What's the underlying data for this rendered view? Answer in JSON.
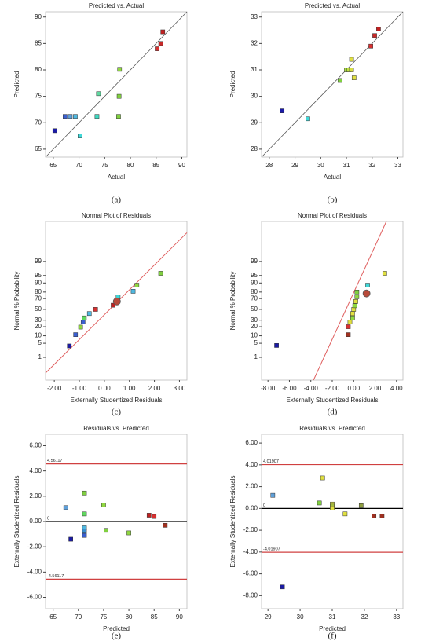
{
  "chart_data": [
    {
      "type": "scatter",
      "title": "Predicted vs. Actual",
      "xlabel": "Actual",
      "ylabel": "Predicted",
      "caption": "(a)",
      "x": [
        65.3,
        67.3,
        68.3,
        69.3,
        70.2,
        73.5,
        73.8,
        77.7,
        77.8,
        77.9,
        85.2,
        85.9,
        86.3
      ],
      "values": [
        68.5,
        71.2,
        71.2,
        71.2,
        67.5,
        71.2,
        75.5,
        71.2,
        75,
        80.1,
        84,
        85,
        87.2
      ],
      "colors": [
        "#1a1aa6",
        "#3a5fd0",
        "#5f9fd8",
        "#4fb8e0",
        "#3fd8d8",
        "#3fd8c0",
        "#60d8a0",
        "#80d040",
        "#80d040",
        "#90d840",
        "#d83030",
        "#c82828",
        "#c02020"
      ],
      "xlim": [
        63.5,
        91
      ],
      "ylim": [
        63.5,
        91
      ],
      "xticks": [
        65,
        70,
        75,
        80,
        85,
        90
      ],
      "yticks": [
        65,
        70,
        75,
        80,
        85,
        90
      ],
      "diagonal": true
    },
    {
      "type": "scatter",
      "title": "Predicted vs. Actual",
      "xlabel": "Actual",
      "ylabel": "Predicted",
      "caption": "(b)",
      "x": [
        28.5,
        29.5,
        30.75,
        31.0,
        31.1,
        31.2,
        31.2,
        31.3,
        31.95,
        32.1,
        32.25
      ],
      "values": [
        29.45,
        29.15,
        30.6,
        31.0,
        31.0,
        31.0,
        31.4,
        30.7,
        31.9,
        32.3,
        32.55
      ],
      "colors": [
        "#1a1aa6",
        "#3fd8d8",
        "#80d040",
        "#a8e040",
        "#c0e040",
        "#d8e040",
        "#e0e040",
        "#e0e040",
        "#d83030",
        "#c82828",
        "#c02020"
      ],
      "xlim": [
        27.7,
        33.2
      ],
      "ylim": [
        27.7,
        33.2
      ],
      "xticks": [
        28,
        29,
        30,
        31,
        32,
        33
      ],
      "yticks": [
        28,
        29,
        30,
        31,
        32,
        33
      ],
      "diagonal": true
    },
    {
      "type": "scatter",
      "title": "Normal Plot of Residuals",
      "xlabel": "Externally Studentized Residuals",
      "ylabel": "Normal % Probability",
      "caption": "(c)",
      "x": [
        -1.4,
        -1.15,
        -0.95,
        -0.85,
        -0.8,
        -0.6,
        -0.35,
        0.35,
        0.55,
        1.15,
        1.3,
        2.25
      ],
      "values": [
        3.8,
        11,
        19.5,
        27,
        34,
        42,
        50,
        58,
        73,
        81,
        88,
        96
      ],
      "colors": [
        "#1a1aa6",
        "#3a5fd0",
        "#90d840",
        "#3a5fd0",
        "#60d860",
        "#4fb8e0",
        "#d83030",
        "#c02020",
        "#3fd8d8",
        "#4fb8e0",
        "#90d840",
        "#80d040"
      ],
      "highlight": {
        "x": 0.5,
        "y": 65
      },
      "fit_line": {
        "x": [
          -2.35,
          3.3
        ],
        "y": [
          0.1,
          99.99
        ]
      },
      "yscale": "probit",
      "xlim": [
        -2.35,
        3.3
      ],
      "ylim": [
        0.03,
        99.999
      ],
      "xticks": [
        {
          "value": -2,
          "label": "-2.00"
        },
        {
          "value": -1,
          "label": "-1.00"
        },
        {
          "value": 0,
          "label": "0.00"
        },
        {
          "value": 1,
          "label": "1.00"
        },
        {
          "value": 2,
          "label": "2.00"
        },
        {
          "value": 3,
          "label": "3.00"
        }
      ],
      "yticks": [
        1,
        5,
        10,
        20,
        30,
        50,
        70,
        80,
        90,
        95,
        99
      ]
    },
    {
      "type": "scatter",
      "title": "Normal Plot of Residuals",
      "xlabel": "Externally Studentized Residuals",
      "ylabel": "Normal % Probability",
      "caption": "(d)",
      "x": [
        -7.2,
        -0.5,
        -0.5,
        -0.35,
        -0.1,
        -0.1,
        0,
        0.1,
        0.2,
        0.3,
        0.3,
        1.3,
        2.9
      ],
      "values": [
        4,
        11,
        20,
        27,
        34,
        42,
        50,
        57,
        65,
        73,
        80,
        88,
        96
      ],
      "colors": [
        "#1a1aa6",
        "#a03020",
        "#d83030",
        "#e0e040",
        "#90d840",
        "#e0e040",
        "#e0e040",
        "#90d840",
        "#e0e040",
        "#90d840",
        "#80d040",
        "#3fd8d8",
        "#e0e040"
      ],
      "highlight": {
        "x": 1.2,
        "y": 78
      },
      "fit_line": {
        "x": [
          -3.75,
          3.05
        ],
        "y": [
          0.03,
          99.999
        ]
      },
      "yscale": "probit",
      "xlim": [
        -8.6,
        4.6
      ],
      "ylim": [
        0.03,
        99.999
      ],
      "xticks": [
        {
          "value": -8,
          "label": "-8.00"
        },
        {
          "value": -6,
          "label": "-6.00"
        },
        {
          "value": -4,
          "label": "-4.00"
        },
        {
          "value": -2,
          "label": "-2.00"
        },
        {
          "value": 0,
          "label": "0.00"
        },
        {
          "value": 2,
          "label": "2.00"
        },
        {
          "value": 4,
          "label": "4.00"
        }
      ],
      "yticks": [
        1,
        5,
        10,
        20,
        30,
        50,
        70,
        80,
        90,
        95,
        99
      ]
    },
    {
      "type": "scatter",
      "title": "Residuals vs. Predicted",
      "xlabel": "Predicted",
      "ylabel": "Externally Studentized Residuals",
      "caption": "(e)",
      "x": [
        67.5,
        68.5,
        71.2,
        71.2,
        71.2,
        71.2,
        71.2,
        75,
        75.5,
        80,
        84,
        85,
        87.2
      ],
      "values": [
        1.1,
        -1.4,
        2.25,
        0.6,
        -0.5,
        -0.75,
        -1.1,
        1.3,
        -0.7,
        -0.9,
        0.5,
        0.4,
        -0.3
      ],
      "colors": [
        "#5f9fd8",
        "#1a1aa6",
        "#80d040",
        "#60d860",
        "#4fb8e0",
        "#3a8fd0",
        "#3a5fd0",
        "#90d840",
        "#80d040",
        "#90d840",
        "#c02020",
        "#d83030",
        "#a03020"
      ],
      "hlines": [
        {
          "value": 4.56117,
          "color": "#d04040"
        },
        {
          "value": 0,
          "color": "#000000"
        },
        {
          "value": -4.56117,
          "color": "#d04040"
        }
      ],
      "xlim": [
        63.5,
        91.5
      ],
      "ylim": [
        -6.9,
        6.9
      ],
      "xticks": [
        65,
        70,
        75,
        80,
        85,
        90
      ],
      "yticks": [
        {
          "value": -6,
          "label": "-6.00"
        },
        {
          "value": -4,
          "label": "-4.00"
        },
        {
          "value": -2,
          "label": "-2.00"
        },
        {
          "value": 0,
          "label": "0.00"
        },
        {
          "value": 2,
          "label": "2.00"
        },
        {
          "value": 4,
          "label": "4.00"
        },
        {
          "value": 6,
          "label": "6.00"
        }
      ]
    },
    {
      "type": "scatter",
      "title": "Residuals vs. Predicted",
      "xlabel": "Predicted",
      "ylabel": "Externally Studentized Residuals",
      "caption": "(f)",
      "x": [
        29.15,
        29.45,
        30.6,
        30.7,
        31.0,
        31.0,
        31.0,
        31.4,
        31.9,
        32.3,
        32.55
      ],
      "values": [
        1.2,
        -7.2,
        0.5,
        2.8,
        0.4,
        0.2,
        0.05,
        -0.5,
        0.25,
        -0.7,
        -0.7
      ],
      "colors": [
        "#5f9fd8",
        "#1a1aa6",
        "#80d040",
        "#e0e040",
        "#d8e040",
        "#c0e040",
        "#e0e040",
        "#e0e040",
        "#90a040",
        "#a03020",
        "#a03020"
      ],
      "hlines": [
        {
          "value": 4.01907,
          "color": "#d04040"
        },
        {
          "value": 0,
          "color": "#000000"
        },
        {
          "value": -4.01907,
          "color": "#d04040"
        }
      ],
      "xlim": [
        28.8,
        33.2
      ],
      "ylim": [
        -9.2,
        6.8
      ],
      "xticks": [
        29,
        30,
        31,
        32,
        33
      ],
      "yticks": [
        {
          "value": -8,
          "label": "-8.00"
        },
        {
          "value": -6,
          "label": "-6.00"
        },
        {
          "value": -4,
          "label": "-4.00"
        },
        {
          "value": -2,
          "label": "-2.00"
        },
        {
          "value": 0,
          "label": "0.00"
        },
        {
          "value": 2,
          "label": "2.00"
        },
        {
          "value": 4,
          "label": "4.00"
        },
        {
          "value": 6,
          "label": "6.00"
        }
      ]
    }
  ]
}
